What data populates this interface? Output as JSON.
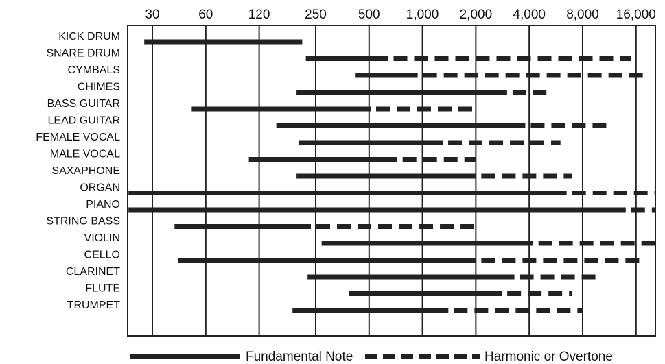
{
  "chart_data": {
    "type": "range-bar",
    "title": "",
    "xlabel": "",
    "ylabel": "",
    "x_scale": "log",
    "x_unit": "Hz",
    "ticks": [
      30,
      60,
      120,
      250,
      500,
      1000,
      2000,
      4000,
      8000,
      16000
    ],
    "tick_labels": [
      "30",
      "60",
      "120",
      "250",
      "500",
      "1,000",
      "2,000",
      "4,000",
      "8,000",
      "16,000"
    ],
    "xlim": [
      22,
      22000
    ],
    "grid": "vertical lines at ticks",
    "legend": {
      "placement": "bottom",
      "fundamental": "Fundamental Note",
      "harmonic": "Harmonic or Overtone"
    },
    "instruments": [
      {
        "name": "KICK DRUM",
        "fundamental": [
          27,
          210
        ],
        "harmonic": null
      },
      {
        "name": "SNARE DRUM",
        "fundamental": [
          220,
          640
        ],
        "harmonic": [
          640,
          15000
        ]
      },
      {
        "name": "CYMBALS",
        "fundamental": [
          420,
          940
        ],
        "harmonic": [
          940,
          18000
        ]
      },
      {
        "name": "CHIMES",
        "fundamental": [
          195,
          3000
        ],
        "harmonic": [
          3000,
          5000
        ]
      },
      {
        "name": "BASS GUITAR",
        "fundamental": [
          50,
          510
        ],
        "harmonic": [
          510,
          1950
        ]
      },
      {
        "name": "LEAD GUITAR",
        "fundamental": [
          150,
          3800
        ],
        "harmonic": [
          3800,
          11000
        ]
      },
      {
        "name": "FEMALE VOCAL",
        "fundamental": [
          200,
          1300
        ],
        "harmonic": [
          1300,
          6000
        ]
      },
      {
        "name": "MALE VOCAL",
        "fundamental": [
          105,
          720
        ],
        "harmonic": [
          720,
          2000
        ]
      },
      {
        "name": "SAXAPHONE",
        "fundamental": [
          195,
          2000
        ],
        "harmonic": [
          2000,
          7000
        ]
      },
      {
        "name": "ORGAN",
        "fundamental": [
          22,
          6500
        ],
        "harmonic": [
          6500,
          22000
        ]
      },
      {
        "name": "PIANO",
        "fundamental": [
          22,
          14000
        ],
        "harmonic": [
          14000,
          22000
        ]
      },
      {
        "name": "STRING BASS",
        "fundamental": [
          40,
          235
        ],
        "harmonic": [
          235,
          2000
        ]
      },
      {
        "name": "VIOLIN",
        "fundamental": [
          270,
          4200
        ],
        "harmonic": [
          4200,
          22000
        ]
      },
      {
        "name": "CELLO",
        "fundamental": [
          42,
          2000
        ],
        "harmonic": [
          2000,
          17000
        ]
      },
      {
        "name": "CLARINET",
        "fundamental": [
          225,
          3300
        ],
        "harmonic": [
          3300,
          10000
        ]
      },
      {
        "name": "FLUTE",
        "fundamental": [
          385,
          2800
        ],
        "harmonic": [
          2800,
          7000
        ]
      },
      {
        "name": "TRUMPET",
        "fundamental": [
          185,
          1400
        ],
        "harmonic": [
          1400,
          8000
        ]
      }
    ]
  },
  "colors": {
    "bar": "#222222",
    "grid": "#222222",
    "background": "#ffffff"
  }
}
